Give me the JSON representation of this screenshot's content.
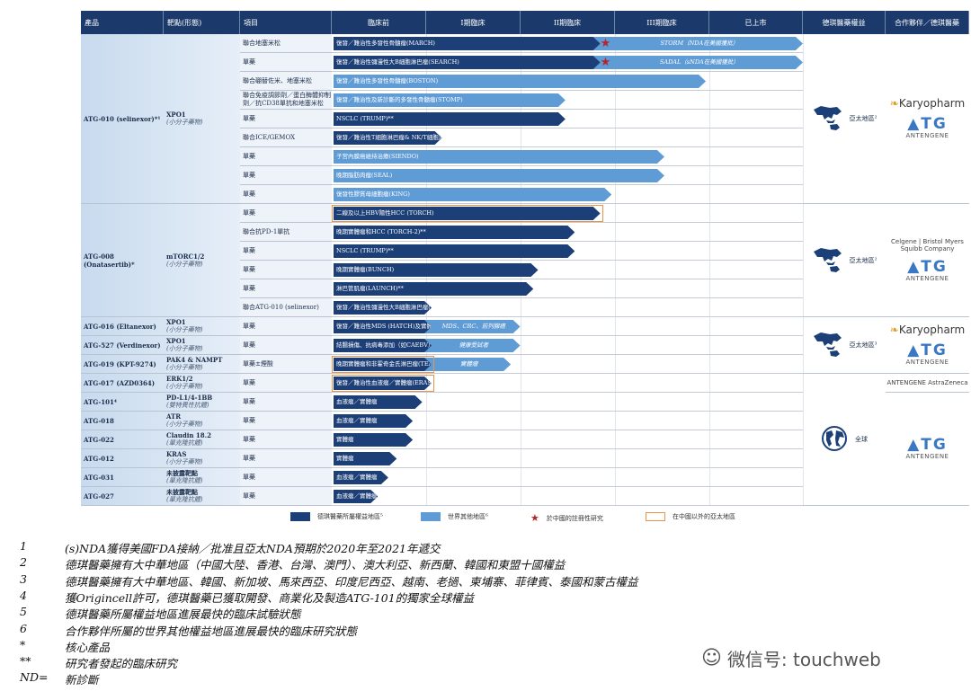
{
  "header": [
    "產品",
    "靶點(形態)",
    "項目",
    "臨床前",
    "I期臨床",
    "II期臨床",
    "III期臨床",
    "已上市",
    "德琪醫藥權益",
    "合作夥伴／德琪醫藥"
  ],
  "stage_scale_note_units": "stages (0 = start of 臨床前, 5 = end of 已上市)",
  "colors": {
    "header": "#1b3a6b",
    "own_region": "#1c3f78",
    "rest_of_world": "#5f9bd5",
    "china_registration_star": "#b3262b",
    "apac_ex_china_outline": "#e8944a"
  },
  "groups": [
    {
      "product": "ATG-010 (selinexor)*¹",
      "target": "XPO1",
      "form": "(小分子藥物)",
      "rows": [
        0,
        8
      ]
    },
    {
      "product": "ATG-008 (Onatasertib)*",
      "target": "mTORC1/2",
      "form": "(小分子藥物)",
      "rows": [
        9,
        14
      ]
    },
    {
      "product": "ATG-016 (Eltanexor)",
      "target": "XPO1",
      "form": "(小分子藥物)",
      "rows": [
        15,
        15
      ]
    },
    {
      "product": "ATG-527 (Verdinexor)",
      "target": "XPO1",
      "form": "(小分子藥物)",
      "rows": [
        16,
        16
      ]
    },
    {
      "product": "ATG-019 (KPT-9274)",
      "target": "PAK4 & NAMPT",
      "form": "(小分子藥物)",
      "rows": [
        17,
        17
      ]
    },
    {
      "product": "ATG-017 (AZD0364)",
      "target": "ERK1/2",
      "form": "(小分子藥物)",
      "rows": [
        18,
        18
      ]
    },
    {
      "product": "ATG-101⁴",
      "target": "PD-L1/4-1BB",
      "form": "(雙特異性抗體)",
      "rows": [
        19,
        19
      ]
    },
    {
      "product": "ATG-018",
      "target": "ATR",
      "form": "(小分子藥物)",
      "rows": [
        20,
        20
      ]
    },
    {
      "product": "ATG-022",
      "target": "Claudin 18.2",
      "form": "(單克隆抗體)",
      "rows": [
        21,
        21
      ]
    },
    {
      "product": "ATG-012",
      "target": "KRAS",
      "form": "(小分子藥物)",
      "rows": [
        22,
        22
      ]
    },
    {
      "product": "ATG-031",
      "target": "未披露靶點",
      "form": "(單克隆抗體)",
      "rows": [
        23,
        23
      ]
    },
    {
      "product": "ATG-027",
      "target": "未披露靶點",
      "form": "(單克隆抗體)",
      "rows": [
        24,
        24
      ]
    }
  ],
  "rows": [
    {
      "item": "聯合地塞米松",
      "label": "復發／難治性多發性骨髓瘤(MARCH)",
      "type": "dark",
      "progress": 2.85,
      "star": true,
      "ext_label": "STORM（NDA在美國獲批）",
      "ext_progress": 5.0
    },
    {
      "item": "單藥",
      "label": "復發／難治性彌漫性大B細胞淋巴瘤(SEARCH)",
      "type": "dark",
      "progress": 2.85,
      "star": true,
      "ext_label": "SADAL（sNDA在美國獲批）",
      "ext_progress": 5.0
    },
    {
      "item": "聯合硼替佐米、地塞米松",
      "label": "復發／難治性多發性骨髓瘤(BOSTON)",
      "type": "light",
      "progress": 3.97
    },
    {
      "item": "聯合免疫調節劑／蛋白酶體抑制劑／抗CD38單抗和地塞米松",
      "label": "復發／難治性及新診斷的多發性骨髓瘤(STOMP)",
      "type": "light",
      "progress": 2.48
    },
    {
      "item": "單藥",
      "label": "NSCLC (TRUMP)**",
      "type": "dark",
      "progress": 2.48
    },
    {
      "item": "聯合ICE/GEMOX",
      "label": "復發／難治性T細胞淋巴瘤& NK/T細胞淋巴瘤(TOUCH)",
      "type": "dark",
      "progress": 1.17
    },
    {
      "item": "單藥",
      "label": "子宮內膜癌維持治療(SIENDO)",
      "type": "light",
      "progress": 3.53
    },
    {
      "item": "單藥",
      "label": "晚期脂肪肉瘤(SEAL)",
      "type": "light",
      "progress": 3.53
    },
    {
      "item": "單藥",
      "label": "復發性膠質母細胞瘤(KING)",
      "type": "light",
      "progress": 2.97
    },
    {
      "item": "單藥",
      "label": "二線及以上HBV陽性HCC (TORCH)",
      "type": "dark",
      "progress": 2.85,
      "orange": true
    },
    {
      "item": "聯合抗PD-1單抗",
      "label": "晚期實體瘤和HCC (TORCH-2)**",
      "type": "dark",
      "progress": 2.58
    },
    {
      "item": "單藥",
      "label": "NSCLC (TRUMP)**",
      "type": "dark",
      "progress": 2.58
    },
    {
      "item": "單藥",
      "label": "晚期實體瘤(BUNCH)",
      "type": "dark",
      "progress": 2.19
    },
    {
      "item": "單藥",
      "label": "淋巴管肌瘤(LAUNCH)**",
      "type": "dark",
      "progress": 2.14
    },
    {
      "item": "聯合ATG-010 (selinexor)",
      "label": "復發／難治性彌漫性大B細胞淋巴瘤(MATCH)",
      "type": "dark",
      "progress": 1.06
    },
    {
      "item": "單藥",
      "label": "復發／難治性MDS (HATCH)及實體瘤",
      "type": "dark",
      "progress": 1.06,
      "ext_label": "MDS、CRC、前列腺癌",
      "ext_progress": 2.0
    },
    {
      "item": "單藥",
      "label": "結腸損傷、抗病毒添加（如CAEBV）(CATCH)",
      "type": "dark",
      "progress": 1.06,
      "ext_label": "健康受試者",
      "ext_progress": 2.0
    },
    {
      "item": "單藥±煙酸",
      "label": "晚期實體瘤和非霍奇金氏淋巴瘤(TEACH)",
      "type": "dark",
      "progress": 1.06,
      "orange": true,
      "ext_label": "實體瘤",
      "ext_progress": 1.9
    },
    {
      "item": "單藥",
      "label": "復發／難治性血液瘤／實體瘤(ERASER)",
      "type": "dark",
      "progress": 1.06,
      "orange": true
    },
    {
      "item": "單藥",
      "label": "血液瘤／實體瘤",
      "type": "dark",
      "progress": 0.96
    },
    {
      "item": "單藥",
      "label": "血液瘤／實體瘤",
      "type": "dark",
      "progress": 0.86
    },
    {
      "item": "單藥",
      "label": "實體瘤",
      "type": "dark",
      "progress": 0.86
    },
    {
      "item": "單藥",
      "label": "實體瘤",
      "type": "dark",
      "progress": 0.69
    },
    {
      "item": "單藥",
      "label": "血液瘤／實體瘤",
      "type": "dark",
      "progress": 0.6
    },
    {
      "item": "單藥",
      "label": "血液瘤／實體瘤",
      "type": "dark",
      "progress": 0.49
    }
  ],
  "rights": [
    {
      "label": "亞太地區²",
      "icon": "asia-pacific-map-icon",
      "rows": [
        0,
        8
      ]
    },
    {
      "label": "亞太地區²",
      "icon": "asia-pacific-map-icon",
      "rows": [
        9,
        14
      ]
    },
    {
      "label": "亞太地區³",
      "icon": "asia-pacific-map-icon",
      "rows": [
        15,
        17
      ]
    },
    {
      "label": "全球",
      "icon": "globe-icon",
      "rows": [
        18,
        24
      ]
    }
  ],
  "partners": [
    {
      "logos": [
        "Karyopharm",
        "ANTENGENE"
      ],
      "rows": [
        0,
        8
      ]
    },
    {
      "logos": [
        "Celgene | Bristol Myers Squibb Company",
        "ANTENGENE"
      ],
      "rows": [
        9,
        14
      ]
    },
    {
      "logos": [
        "Karyopharm",
        "ANTENGENE"
      ],
      "rows": [
        15,
        17
      ]
    },
    {
      "logos": [
        "ANTENGENE AstraZeneca"
      ],
      "rows": [
        18,
        18
      ]
    },
    {
      "logos": [
        "ANTENGENE"
      ],
      "rows": [
        19,
        24
      ]
    }
  ],
  "legend": [
    "德琪醫藥所屬權益地區⁵",
    "世界其他地區⁶",
    "於中國的註冊性研究",
    "在中國以外的亞太地區"
  ],
  "footnotes": [
    {
      "mark": "1",
      "text": "(s)NDA獲得美國FDA接納／批准且亞太NDA預期於2020年至2021年遞交"
    },
    {
      "mark": "2",
      "text": "德琪醫藥擁有大中華地區（中國大陸、香港、台灣、澳門）、澳大利亞、新西蘭、韓國和東盟十國權益"
    },
    {
      "mark": "3",
      "text": "德琪醫藥擁有大中華地區、韓國、新加坡、馬來西亞、印度尼西亞、越南、老撾、柬埔寨、菲律賓、泰國和蒙古權益"
    },
    {
      "mark": "4",
      "text": "獲Origincell許可，德琪醫藥已獲取開發、商業化及製造ATG-101的獨家全球權益"
    },
    {
      "mark": "5",
      "text": "德琪醫藥所屬權益地區進展最快的臨床試驗狀態"
    },
    {
      "mark": "6",
      "text": "合作夥伴所屬的世界其他權益地區進展最快的臨床研究狀態"
    },
    {
      "mark": "*",
      "text": "核心產品"
    },
    {
      "mark": "**",
      "text": "研究者發起的臨床研究"
    },
    {
      "mark": "ND=",
      "text": "新診斷"
    }
  ],
  "watermark": "微信号: touchweb"
}
